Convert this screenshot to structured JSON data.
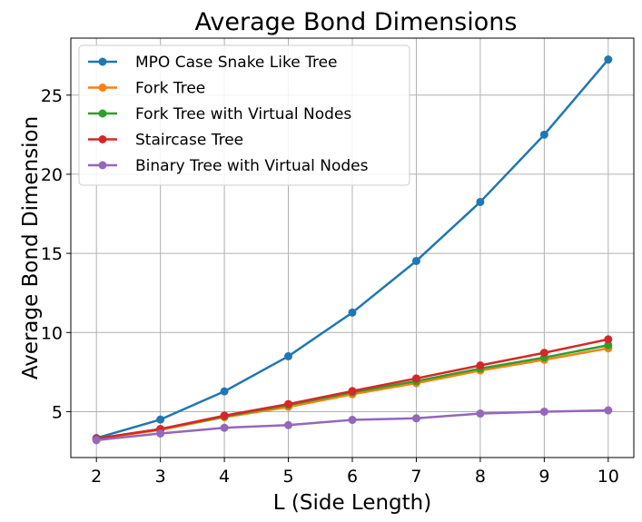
{
  "chart_data": {
    "type": "line",
    "title": "Average Bond Dimensions",
    "xlabel": "L (Side Length)",
    "ylabel": "Average Bond Dimension",
    "x": [
      2,
      3,
      4,
      5,
      6,
      7,
      8,
      9,
      10
    ],
    "xlim": [
      1.6,
      10.4
    ],
    "ylim": [
      2.1,
      28.6
    ],
    "xticks": [
      2,
      3,
      4,
      5,
      6,
      7,
      8,
      9,
      10
    ],
    "yticks": [
      5,
      10,
      15,
      20,
      25
    ],
    "grid": true,
    "legend_position": "top-left",
    "series": [
      {
        "name": "MPO Case Snake Like Tree",
        "color": "#1f77b4",
        "values": [
          3.33,
          4.5,
          6.28,
          8.5,
          11.26,
          14.52,
          18.25,
          22.5,
          27.25
        ]
      },
      {
        "name": "Fork Tree",
        "color": "#ff7f0e",
        "values": [
          3.27,
          3.85,
          4.65,
          5.3,
          6.1,
          6.8,
          7.6,
          8.28,
          9.0
        ]
      },
      {
        "name": "Fork Tree with Virtual Nodes",
        "color": "#2ca02c",
        "values": [
          3.3,
          3.9,
          4.7,
          5.42,
          6.22,
          6.93,
          7.72,
          8.42,
          9.2
        ]
      },
      {
        "name": "Staircase Tree",
        "color": "#d62728",
        "values": [
          3.3,
          3.9,
          4.75,
          5.48,
          6.3,
          7.1,
          7.92,
          8.72,
          9.57
        ]
      },
      {
        "name": "Binary Tree with Virtual Nodes",
        "color": "#9467bd",
        "values": [
          3.2,
          3.62,
          3.98,
          4.15,
          4.48,
          4.58,
          4.88,
          5.0,
          5.08
        ]
      }
    ]
  }
}
